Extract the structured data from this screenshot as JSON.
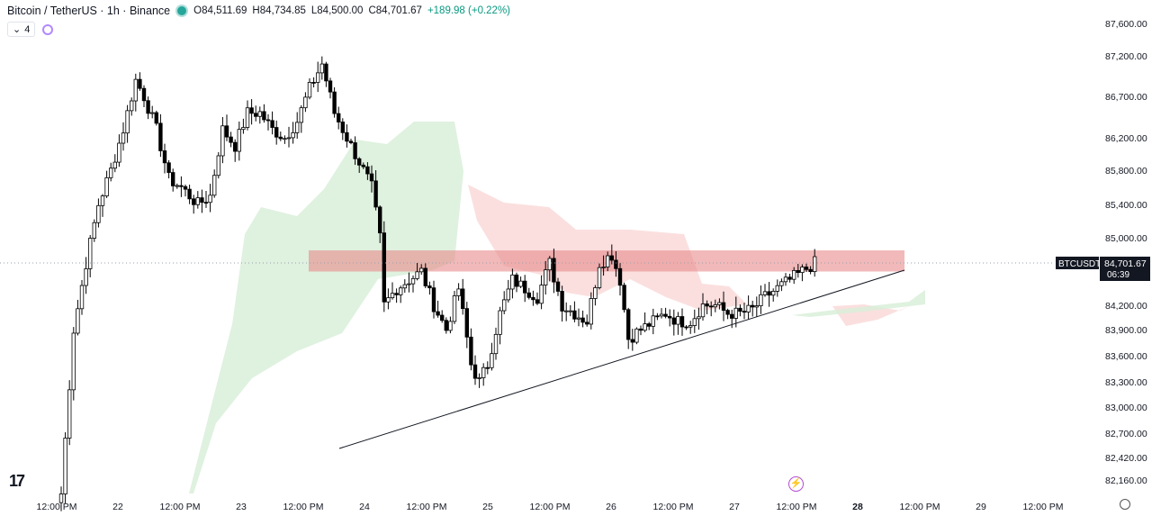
{
  "header": {
    "symbol": "Bitcoin / TetherUS · 1h · Binance",
    "ohlc": [
      {
        "k": "O",
        "v": "84,511.69"
      },
      {
        "k": "H",
        "v": "84,734.85"
      },
      {
        "k": "L",
        "v": "84,500.00"
      },
      {
        "k": "C",
        "v": "84,701.67"
      }
    ],
    "change": "+189.98 (+0.22%)",
    "indicator_count": "4"
  },
  "price_tag": {
    "symbol": "BTCUSDT",
    "price": "84,701.67",
    "countdown": "06:39"
  },
  "colors": {
    "up": "#ffffff",
    "down": "#000000",
    "cloud_green": "#d9efd9",
    "cloud_red": "#fbdcdc",
    "resistance": "#e88a8a"
  },
  "chart_data": {
    "type": "candlestick",
    "y_axis": {
      "range": [
        82000,
        87800
      ],
      "ticks": [
        87600,
        87200,
        86700,
        86200,
        85800,
        85400,
        85000,
        84200,
        83900,
        83600,
        83300,
        83000,
        82700,
        82420,
        82160
      ],
      "tick_labels": [
        "87,600.00",
        "87,200.00",
        "86,700.00",
        "86,200.00",
        "85,800.00",
        "85,400.00",
        "85,000.00",
        "84,200.00",
        "83,900.00",
        "83,600.00",
        "83,300.00",
        "83,000.00",
        "82,700.00",
        "82,420.00",
        "82,160.00"
      ]
    },
    "x_axis": {
      "labels": [
        "12:00 PM",
        "22",
        "12:00 PM",
        "23",
        "12:00 PM",
        "24",
        "12:00 PM",
        "25",
        "12:00 PM",
        "26",
        "12:00 PM",
        "27",
        "12:00 PM",
        "28",
        "12:00 PM",
        "29",
        "12:00 PM"
      ],
      "bold_label": "28"
    },
    "candles_anchor": [
      [
        0,
        82000
      ],
      [
        3,
        83900
      ],
      [
        6,
        84700
      ],
      [
        9,
        85400
      ],
      [
        12,
        85800
      ],
      [
        15,
        86300
      ],
      [
        18,
        86900
      ],
      [
        20,
        86700
      ],
      [
        23,
        86300
      ],
      [
        26,
        85700
      ],
      [
        29,
        85600
      ],
      [
        33,
        85400
      ],
      [
        36,
        85500
      ],
      [
        39,
        86300
      ],
      [
        42,
        86100
      ],
      [
        45,
        86500
      ],
      [
        48,
        86500
      ],
      [
        51,
        86300
      ],
      [
        54,
        86200
      ],
      [
        57,
        86400
      ],
      [
        60,
        86800
      ],
      [
        63,
        87100
      ],
      [
        66,
        86500
      ],
      [
        69,
        86200
      ],
      [
        72,
        85900
      ],
      [
        75,
        85600
      ],
      [
        77,
        85000
      ],
      [
        78,
        84200
      ],
      [
        81,
        84400
      ],
      [
        84,
        84500
      ],
      [
        87,
        84600
      ],
      [
        90,
        84200
      ],
      [
        93,
        83900
      ],
      [
        96,
        84400
      ],
      [
        99,
        83500
      ],
      [
        101,
        83300
      ],
      [
        103,
        83500
      ],
      [
        106,
        84100
      ],
      [
        109,
        84500
      ],
      [
        112,
        84400
      ],
      [
        115,
        84300
      ],
      [
        118,
        84700
      ],
      [
        121,
        84200
      ],
      [
        124,
        84100
      ],
      [
        127,
        84000
      ],
      [
        130,
        84700
      ],
      [
        133,
        84800
      ],
      [
        135,
        84500
      ],
      [
        137,
        83800
      ],
      [
        140,
        83900
      ],
      [
        143,
        84000
      ],
      [
        146,
        84100
      ],
      [
        149,
        84000
      ],
      [
        152,
        84000
      ],
      [
        155,
        84200
      ],
      [
        158,
        84200
      ],
      [
        161,
        84100
      ],
      [
        164,
        84100
      ],
      [
        167,
        84150
      ],
      [
        170,
        84300
      ],
      [
        173,
        84400
      ],
      [
        176,
        84500
      ],
      [
        179,
        84600
      ],
      [
        182,
        84700
      ]
    ],
    "resistance_zone": {
      "low": 84600,
      "high": 84850
    },
    "trendline": {
      "from": [
        77,
        82700
      ],
      "to": [
        190,
        84650
      ]
    },
    "current_price": 84701.67
  }
}
